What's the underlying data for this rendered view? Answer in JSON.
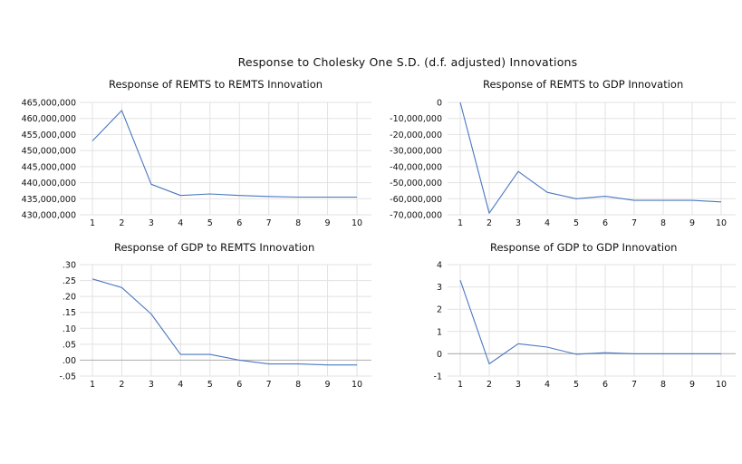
{
  "title": "Response to Cholesky One S.D. (d.f. adjusted) Innovations",
  "chart_data": [
    {
      "type": "line",
      "title": "Response of REMTS to REMTS Innovation",
      "x": [
        1,
        2,
        3,
        4,
        5,
        6,
        7,
        8,
        9,
        10
      ],
      "series": [
        {
          "values": [
            453000000,
            462500000,
            439500000,
            436000000,
            436500000,
            436000000,
            435700000,
            435500000,
            435500000,
            435500000
          ]
        }
      ],
      "ylim": [
        430000000,
        465000000
      ],
      "yticks": [
        430000000,
        435000000,
        440000000,
        445000000,
        450000000,
        455000000,
        460000000,
        465000000
      ],
      "ytick_labels": [
        "430,000,000",
        "435,000,000",
        "440,000,000",
        "445,000,000",
        "450,000,000",
        "455,000,000",
        "460,000,000",
        "465,000,000"
      ],
      "xtick_labels": [
        "1",
        "2",
        "3",
        "4",
        "5",
        "6",
        "7",
        "8",
        "9",
        "10"
      ],
      "grid": true
    },
    {
      "type": "line",
      "title": "Response of REMTS to GDP Innovation",
      "x": [
        1,
        2,
        3,
        4,
        5,
        6,
        7,
        8,
        9,
        10
      ],
      "series": [
        {
          "values": [
            0,
            -69000000,
            -43000000,
            -56000000,
            -60000000,
            -58500000,
            -61000000,
            -61000000,
            -61000000,
            -62000000
          ]
        }
      ],
      "ylim": [
        -70000000,
        0
      ],
      "yticks": [
        -70000000,
        -60000000,
        -50000000,
        -40000000,
        -30000000,
        -20000000,
        -10000000,
        0
      ],
      "ytick_labels": [
        "-70,000,000",
        "-60,000,000",
        "-50,000,000",
        "-40,000,000",
        "-30,000,000",
        "-20,000,000",
        "-10,000,000",
        "0"
      ],
      "xtick_labels": [
        "1",
        "2",
        "3",
        "4",
        "5",
        "6",
        "7",
        "8",
        "9",
        "10"
      ],
      "grid": true
    },
    {
      "type": "line",
      "title": "Response of GDP to REMTS Innovation",
      "x": [
        1,
        2,
        3,
        4,
        5,
        6,
        7,
        8,
        9,
        10
      ],
      "series": [
        {
          "values": [
            0.255,
            0.228,
            0.145,
            0.018,
            0.018,
            0.0,
            -0.012,
            -0.012,
            -0.015,
            -0.015
          ]
        }
      ],
      "ylim": [
        -0.05,
        0.3
      ],
      "yticks": [
        -0.05,
        0.0,
        0.05,
        0.1,
        0.15,
        0.2,
        0.25,
        0.3
      ],
      "ytick_labels": [
        "-.05",
        ".00",
        ".05",
        ".10",
        ".15",
        ".20",
        ".25",
        ".30"
      ],
      "xtick_labels": [
        "1",
        "2",
        "3",
        "4",
        "5",
        "6",
        "7",
        "8",
        "9",
        "10"
      ],
      "zero_line": true,
      "grid": true
    },
    {
      "type": "line",
      "title": "Response of GDP to GDP Innovation",
      "x": [
        1,
        2,
        3,
        4,
        5,
        6,
        7,
        8,
        9,
        10
      ],
      "series": [
        {
          "values": [
            3.3,
            -0.45,
            0.45,
            0.3,
            -0.02,
            0.05,
            0.0,
            0.0,
            0.0,
            0.0
          ]
        }
      ],
      "ylim": [
        -1,
        4
      ],
      "yticks": [
        -1,
        0,
        1,
        2,
        3,
        4
      ],
      "ytick_labels": [
        "-1",
        "0",
        "1",
        "2",
        "3",
        "4"
      ],
      "xtick_labels": [
        "1",
        "2",
        "3",
        "4",
        "5",
        "6",
        "7",
        "8",
        "9",
        "10"
      ],
      "zero_line": true,
      "grid": true
    }
  ],
  "colors": {
    "line": "#4a78c0",
    "grid": "#e2e2e2",
    "zero": "#b8b8b8"
  }
}
